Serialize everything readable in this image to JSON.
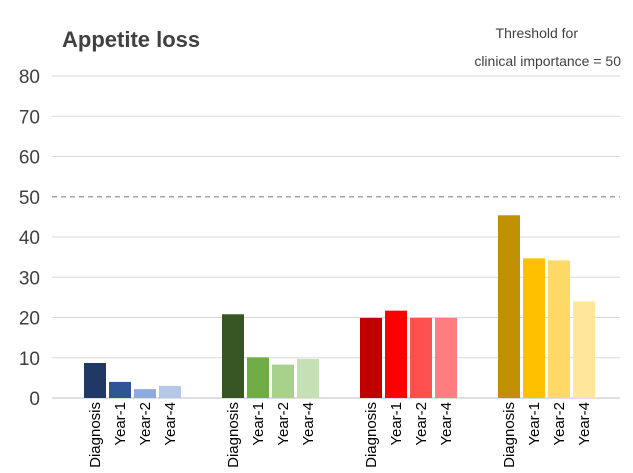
{
  "chart_data": {
    "type": "bar",
    "title": "Appetite loss",
    "ylim": [
      0,
      80
    ],
    "yticks": [
      "0",
      "10",
      "20",
      "30",
      "40",
      "50",
      "60",
      "70",
      "80"
    ],
    "grid": true,
    "categories": [
      "Diagnosis",
      "Year-1",
      "Year-2",
      "Year-4"
    ],
    "groups": [
      {
        "values": [
          8.7,
          4.0,
          2.2,
          3.0
        ],
        "colors": [
          "#1f3864",
          "#2f5597",
          "#8faadc",
          "#b4c7e7"
        ]
      },
      {
        "values": [
          20.8,
          10.1,
          8.3,
          9.7
        ],
        "colors": [
          "#375623",
          "#70ad47",
          "#a9d18e",
          "#c5e0b4"
        ]
      },
      {
        "values": [
          19.9,
          21.7,
          19.9,
          19.9
        ],
        "colors": [
          "#c00000",
          "#ff0000",
          "#ff5050",
          "#ff7c80"
        ]
      },
      {
        "values": [
          45.4,
          34.7,
          34.2,
          24.0
        ],
        "colors": [
          "#bf9000",
          "#ffc000",
          "#ffd966",
          "#ffe699"
        ]
      }
    ],
    "threshold": {
      "value": 50,
      "label_line1": "Threshold   for",
      "label_line2": "clinical importance   = 50"
    }
  }
}
